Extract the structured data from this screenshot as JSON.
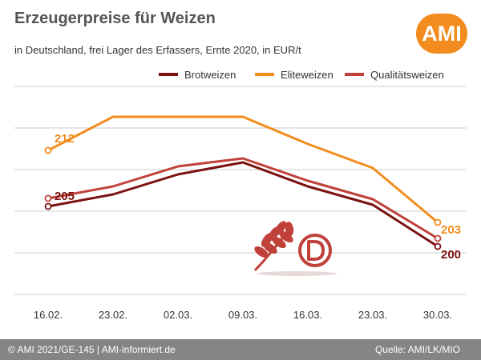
{
  "header": {
    "title": "Erzeugerpreise für Weizen",
    "subtitle": "in Deutschland, frei Lager des Erfassers, Ernte 2020, in EUR/t",
    "logo_text": "AMI"
  },
  "footer": {
    "left": "© AMI 2021/GE-145 | AMI-informiert.de",
    "right": "Quelle: AMI/LK/MIO"
  },
  "colors": {
    "Brotweizen": "#7b1111",
    "Eliteweizen": "#f28c1e",
    "Qualitätsweizen": "#c0413a",
    "grid": "#cccccc"
  },
  "chart_data": {
    "type": "line",
    "title": "Erzeugerpreise für Weizen",
    "categories": [
      "16.02.",
      "23.02.",
      "02.03.",
      "09.03.",
      "16.03.",
      "23.03.",
      "30.03."
    ],
    "grid": true,
    "legend_position": "top-right",
    "ylim": [
      194,
      220
    ],
    "series": [
      {
        "name": "Brotweizen",
        "values": [
          205,
          206.5,
          209,
          210.5,
          207.5,
          205.2,
          200
        ]
      },
      {
        "name": "Eliteweizen",
        "values": [
          212,
          216.2,
          216.2,
          216.2,
          212.8,
          209.8,
          203
        ]
      },
      {
        "name": "Qualitätsweizen",
        "values": [
          206,
          207.5,
          210,
          211,
          208.2,
          205.9,
          201
        ]
      }
    ],
    "annotations": [
      {
        "series": "Eliteweizen",
        "index": 0,
        "text": "212"
      },
      {
        "series": "Brotweizen",
        "index": 0,
        "text": "205"
      },
      {
        "series": "Eliteweizen",
        "index": 6,
        "text": "203"
      },
      {
        "series": "Brotweizen",
        "index": 6,
        "text": "200"
      }
    ]
  }
}
